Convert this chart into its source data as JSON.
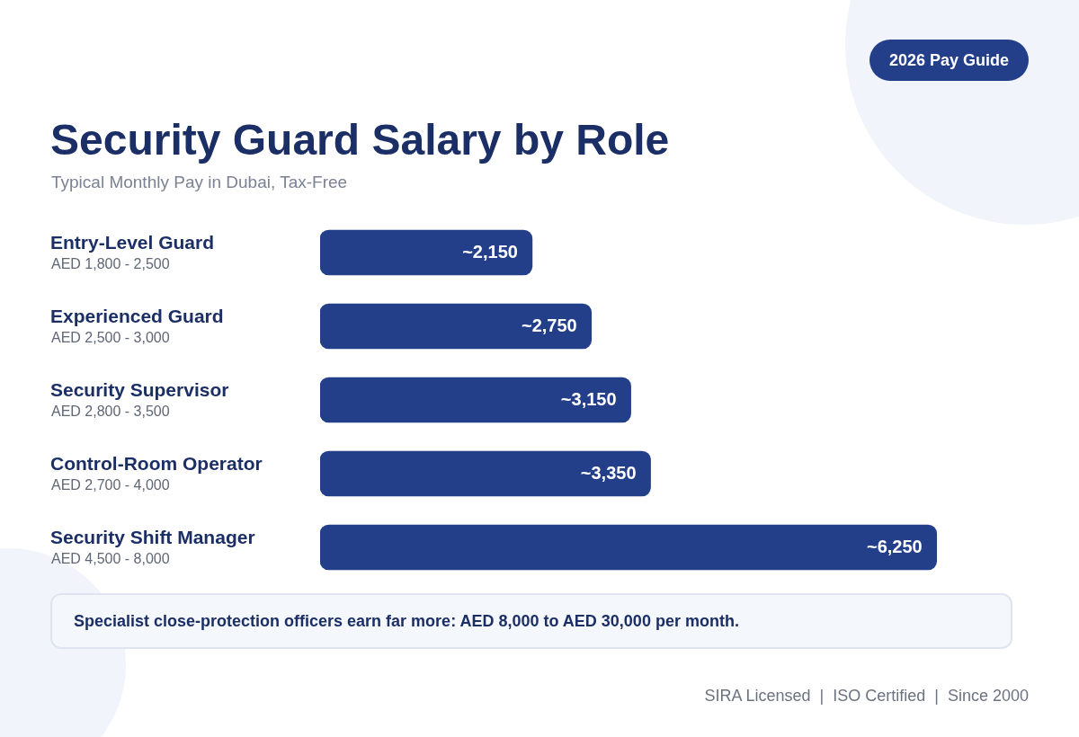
{
  "chart_data": {
    "type": "bar",
    "orientation": "horizontal",
    "title": "Security Guard Salary by Role",
    "subtitle": "Typical Monthly Pay in Dubai, Tax-Free",
    "categories": [
      "Entry-Level Guard\nAED 1,800 - 2,500",
      "Experienced Guard\nAED 2,500 - 3,000",
      "Security Supervisor\nAED 2,800 - 3,500",
      "Control-Room Operator\nAED 2,700 - 4,000",
      "Security Shift Manager\nAED 4,500 - 8,000"
    ],
    "values": [
      2150,
      2750,
      3150,
      3350,
      6250
    ],
    "value_labels": [
      "~2,150",
      "~2,750",
      "~3,150",
      "~3,350",
      "~6,250"
    ],
    "color": "#233f8a",
    "legend": false,
    "tick_labels": "y",
    "annotations": [
      "2026 Pay Guide",
      "Specialist close-protection officers earn far more: AED 8,000 to AED 30,000 per month.",
      "SIRA Licensed  |  ISO Certified  |  Since 2000"
    ]
  }
}
